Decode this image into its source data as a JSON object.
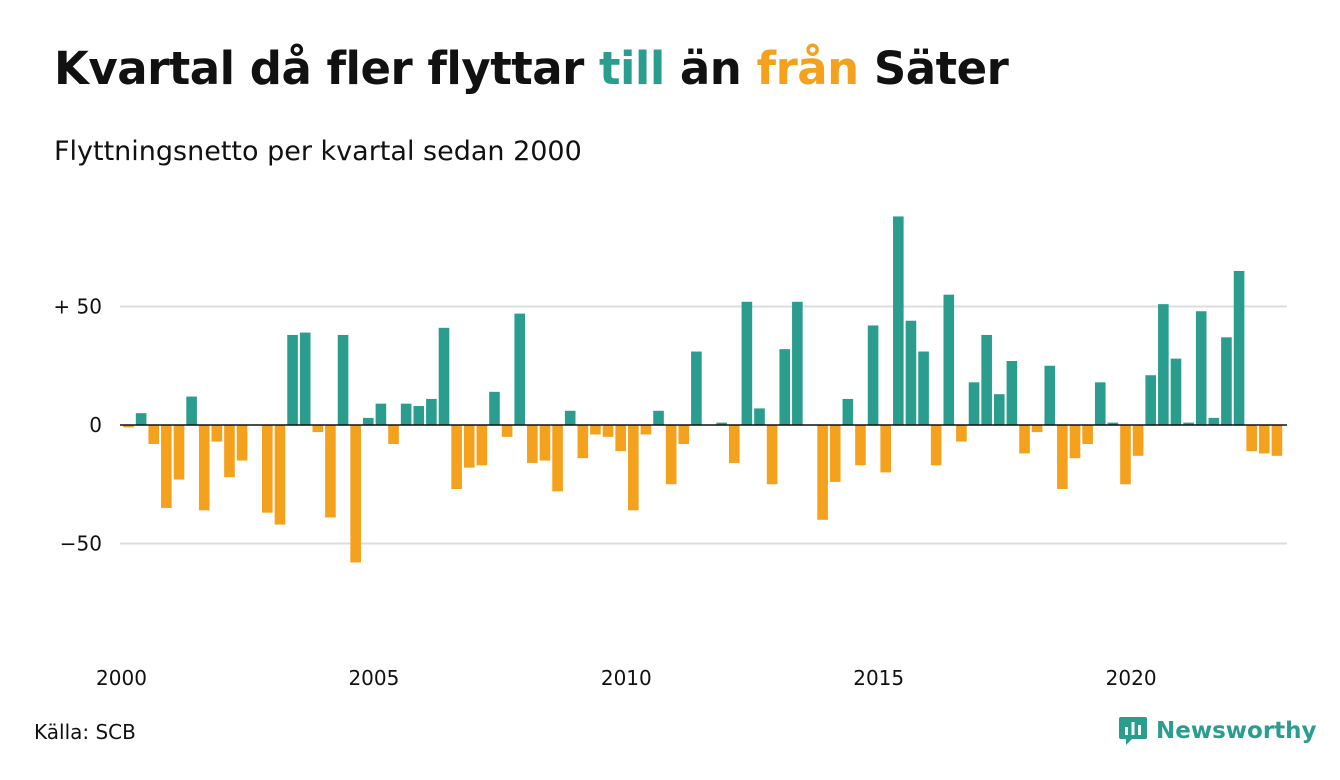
{
  "title": {
    "part1": "Kvartal då fler flyttar ",
    "word_in": "till",
    "part2": " än ",
    "word_out": "från",
    "part3": " Säter"
  },
  "subtitle": "Flyttningsnetto per kvartal sedan 2000",
  "source": "Källa: SCB",
  "brand": {
    "name": "Newsworthy",
    "icon": "newsworthy-logo-icon"
  },
  "colors": {
    "positive": "#2a9d8f",
    "negative": "#f4a11d",
    "grid": "#dddddd",
    "zero": "#111111"
  },
  "chart_data": {
    "type": "bar",
    "start_quarter": "2000Q1",
    "values": [
      -1,
      5,
      -8,
      -35,
      -23,
      12,
      -36,
      -7,
      -22,
      -15,
      0,
      -37,
      -42,
      38,
      39,
      -3,
      -39,
      38,
      -58,
      3,
      9,
      -8,
      9,
      8,
      11,
      41,
      -27,
      -18,
      -17,
      14,
      -5,
      47,
      -16,
      -15,
      -28,
      6,
      -14,
      -4,
      -5,
      -11,
      -36,
      -4,
      6,
      -25,
      -8,
      31,
      0,
      1,
      -16,
      52,
      7,
      -25,
      32,
      52,
      0,
      -40,
      -24,
      11,
      -17,
      42,
      -20,
      88,
      44,
      31,
      -17,
      55,
      -7,
      18,
      38,
      13,
      27,
      -12,
      -3,
      25,
      -27,
      -14,
      -8,
      18,
      1,
      -25,
      -13,
      21,
      51,
      28,
      1,
      48,
      3,
      37,
      65,
      -11,
      -12,
      -13
    ],
    "x_ticks": [
      "2000",
      "2005",
      "2010",
      "2015",
      "2020"
    ],
    "y_ticks": [
      {
        "value": 50,
        "label": "+ 50"
      },
      {
        "value": 0,
        "label": "0"
      },
      {
        "value": -50,
        "label": "−50"
      }
    ],
    "ylim": [
      -85,
      92
    ],
    "grid": true,
    "legend": "none"
  }
}
